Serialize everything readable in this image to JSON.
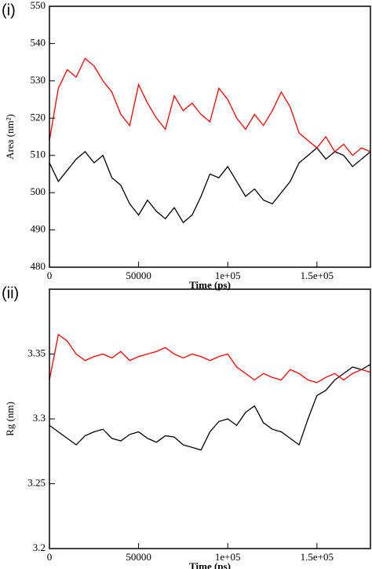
{
  "chart_data": [
    {
      "type": "line",
      "panel_label": "(i)",
      "x_label": "Time (ps)",
      "y_label": "Area (nm²)",
      "x": [
        0,
        5000,
        10000,
        15000,
        20000,
        25000,
        30000,
        35000,
        40000,
        45000,
        50000,
        55000,
        60000,
        65000,
        70000,
        75000,
        80000,
        85000,
        90000,
        95000,
        100000,
        105000,
        110000,
        115000,
        120000,
        125000,
        130000,
        135000,
        140000,
        145000,
        150000,
        155000,
        160000,
        165000,
        170000,
        175000,
        180000
      ],
      "series": [
        {
          "color": "#000000",
          "values": [
            508,
            503,
            506,
            509,
            511,
            508,
            510,
            504,
            502,
            497,
            494,
            498,
            495,
            493,
            496,
            492,
            494,
            499,
            505,
            504,
            507,
            503,
            499,
            501,
            498,
            497,
            500,
            503,
            508,
            510,
            512,
            509,
            511,
            510,
            507,
            509,
            511
          ]
        },
        {
          "color": "#ff0000",
          "values": [
            514,
            528,
            533,
            531,
            536,
            534,
            530,
            527,
            521,
            518,
            529,
            524,
            520,
            517,
            526,
            522,
            524,
            521,
            519,
            528,
            525,
            520,
            517,
            521,
            518,
            522,
            527,
            523,
            516,
            514,
            512,
            515,
            511,
            513,
            510,
            512,
            511
          ]
        }
      ],
      "xlim": [
        0,
        180000
      ],
      "xticks": [
        0,
        50000,
        {
          "value": 100000,
          "label": "1e+05"
        },
        {
          "value": 150000,
          "label": "1.5e+05"
        }
      ],
      "ylim": [
        480,
        550
      ],
      "yticks": [
        480,
        490,
        500,
        510,
        520,
        530,
        540,
        550
      ]
    },
    {
      "type": "line",
      "panel_label": "(ii)",
      "x_label": "Time (ps)",
      "y_label": "Rg (nm)",
      "x": [
        0,
        5000,
        10000,
        15000,
        20000,
        25000,
        30000,
        35000,
        40000,
        45000,
        50000,
        55000,
        60000,
        65000,
        70000,
        75000,
        80000,
        85000,
        90000,
        95000,
        100000,
        105000,
        110000,
        115000,
        120000,
        125000,
        130000,
        135000,
        140000,
        145000,
        150000,
        155000,
        160000,
        165000,
        170000,
        175000,
        180000
      ],
      "series": [
        {
          "color": "#000000",
          "values": [
            3.295,
            3.29,
            3.285,
            3.28,
            3.287,
            3.29,
            3.292,
            3.285,
            3.283,
            3.288,
            3.29,
            3.285,
            3.282,
            3.287,
            3.286,
            3.28,
            3.278,
            3.276,
            3.29,
            3.298,
            3.3,
            3.295,
            3.305,
            3.31,
            3.297,
            3.292,
            3.29,
            3.285,
            3.28,
            3.3,
            3.318,
            3.322,
            3.33,
            3.335,
            3.34,
            3.338,
            3.342
          ]
        },
        {
          "color": "#ff0000",
          "values": [
            3.33,
            3.365,
            3.36,
            3.35,
            3.345,
            3.348,
            3.35,
            3.347,
            3.352,
            3.345,
            3.348,
            3.35,
            3.352,
            3.355,
            3.35,
            3.347,
            3.35,
            3.348,
            3.345,
            3.348,
            3.35,
            3.34,
            3.335,
            3.33,
            3.335,
            3.332,
            3.33,
            3.338,
            3.335,
            3.33,
            3.328,
            3.332,
            3.335,
            3.33,
            3.335,
            3.338,
            3.336
          ]
        }
      ],
      "xlim": [
        0,
        180000
      ],
      "xticks": [
        0,
        50000,
        {
          "value": 100000,
          "label": "1e+05"
        },
        {
          "value": 150000,
          "label": "1.5e+05"
        }
      ],
      "ylim": [
        3.2,
        3.4
      ],
      "yticks": [
        3.2,
        3.25,
        3.3,
        3.35
      ]
    }
  ]
}
